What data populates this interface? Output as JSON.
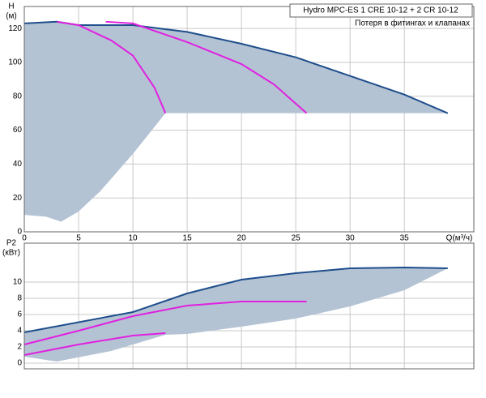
{
  "chart_data": [
    {
      "type": "line",
      "title": "Hydro MPC-ES 1 CRE 10-12  +  2 CR 10-12",
      "subtitle": "Потеря в фитингах и клапанах",
      "xlabel": "Q(м³/ч)",
      "ylabel": [
        "H",
        "(м)"
      ],
      "xlim": [
        0,
        41.4
      ],
      "ylim": [
        0,
        133
      ],
      "xticks": [
        0,
        5,
        10,
        15,
        20,
        25,
        30,
        35
      ],
      "yticks": [
        0,
        20,
        40,
        60,
        80,
        100,
        120
      ],
      "grid": true,
      "series": [
        {
          "color": "#b4c3d4",
          "fill": true,
          "x": [
            0,
            3,
            5,
            10,
            15,
            20,
            25,
            30,
            35,
            39,
            13,
            12,
            10,
            7,
            5,
            3.4,
            2,
            0
          ],
          "values": [
            123,
            124,
            122,
            122,
            118,
            111,
            103,
            92,
            81,
            70,
            70,
            62,
            46,
            24,
            12,
            6,
            9,
            10
          ]
        },
        {
          "color": "#1f4e8c",
          "x": [
            0,
            3,
            5,
            10,
            15,
            20,
            25,
            30,
            35,
            39
          ],
          "values": [
            123,
            124,
            122,
            122,
            118,
            111,
            103,
            92,
            81,
            70
          ]
        },
        {
          "color": "#e020e0",
          "x": [
            3,
            5,
            8,
            10,
            12,
            13
          ],
          "values": [
            124,
            122,
            113,
            104,
            85,
            70
          ]
        },
        {
          "color": "#e020e0",
          "x": [
            7.5,
            10,
            15,
            20,
            23,
            26
          ],
          "values": [
            124,
            123,
            112,
            99,
            87,
            70
          ]
        }
      ]
    },
    {
      "type": "line",
      "ylabel": [
        "P2",
        "(кВт)"
      ],
      "xlim": [
        0,
        41.4
      ],
      "ylim": [
        -0.7,
        14.8
      ],
      "xticks": [
        0,
        5,
        10,
        15,
        20,
        25,
        30,
        35
      ],
      "yticks": [
        0,
        2,
        4,
        6,
        8,
        10
      ],
      "grid": true,
      "series": [
        {
          "color": "#b4c3d4",
          "fill": true,
          "x": [
            0,
            10,
            15,
            20,
            25,
            30,
            35,
            39,
            35,
            30,
            25,
            20,
            15,
            13,
            8,
            3,
            0
          ],
          "values": [
            3.8,
            6.3,
            8.6,
            10.3,
            11.1,
            11.7,
            11.8,
            11.7,
            9,
            7,
            5.5,
            4.5,
            3.6,
            3.5,
            1.5,
            0.2,
            0.8
          ]
        },
        {
          "color": "#1f4e8c",
          "x": [
            0,
            10,
            15,
            20,
            25,
            30,
            35,
            39
          ],
          "values": [
            3.8,
            6.3,
            8.6,
            10.3,
            11.1,
            11.7,
            11.8,
            11.7
          ]
        },
        {
          "color": "#e020e0",
          "x": [
            0,
            5,
            10,
            13
          ],
          "values": [
            1.0,
            2.3,
            3.4,
            3.7
          ]
        },
        {
          "color": "#e020e0",
          "x": [
            0,
            5,
            10,
            15,
            20,
            26
          ],
          "values": [
            2.3,
            4.0,
            5.8,
            7.1,
            7.6,
            7.6
          ]
        }
      ]
    }
  ]
}
